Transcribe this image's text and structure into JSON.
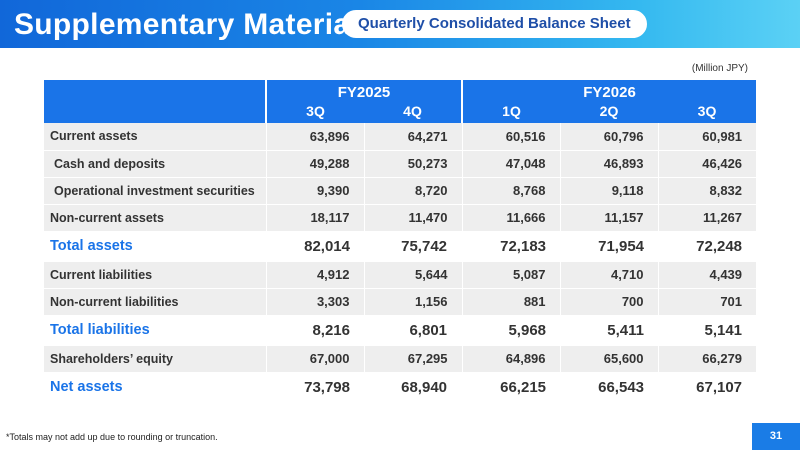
{
  "header": {
    "title": "Supplementary Material",
    "subtitle": "Quarterly Consolidated Balance Sheet"
  },
  "unit_note": "(Million JPY)",
  "table": {
    "groups": [
      "FY2025",
      "FY2026"
    ],
    "columns": [
      "3Q",
      "4Q",
      "1Q",
      "2Q",
      "3Q"
    ],
    "rows": [
      {
        "label": "Current assets",
        "values": [
          "63,896",
          "64,271",
          "60,516",
          "60,796",
          "60,981"
        ],
        "type": "detail"
      },
      {
        "label": "Cash and deposits",
        "values": [
          "49,288",
          "50,273",
          "47,048",
          "46,893",
          "46,426"
        ],
        "type": "detail-indent"
      },
      {
        "label": "Operational investment securities",
        "values": [
          "9,390",
          "8,720",
          "8,768",
          "9,118",
          "8,832"
        ],
        "type": "detail-indent"
      },
      {
        "label": "Non-current assets",
        "values": [
          "18,117",
          "11,470",
          "11,666",
          "11,157",
          "11,267"
        ],
        "type": "detail"
      },
      {
        "label": "Total assets",
        "values": [
          "82,014",
          "75,742",
          "72,183",
          "71,954",
          "72,248"
        ],
        "type": "total"
      },
      {
        "label": "Current liabilities",
        "values": [
          "4,912",
          "5,644",
          "5,087",
          "4,710",
          "4,439"
        ],
        "type": "detail"
      },
      {
        "label": "Non-current liabilities",
        "values": [
          "3,303",
          "1,156",
          "881",
          "700",
          "701"
        ],
        "type": "detail"
      },
      {
        "label": "Total liabilities",
        "values": [
          "8,216",
          "6,801",
          "5,968",
          "5,411",
          "5,141"
        ],
        "type": "total"
      },
      {
        "label": "Shareholders’ equity",
        "values": [
          "67,000",
          "67,295",
          "64,896",
          "65,600",
          "66,279"
        ],
        "type": "detail"
      },
      {
        "label": "Net assets",
        "values": [
          "73,798",
          "68,940",
          "66,215",
          "66,543",
          "67,107"
        ],
        "type": "total"
      }
    ]
  },
  "footnote": "*Totals may not add up due to rounding or truncation.",
  "page_number": "31",
  "colors": {
    "accent": "#1a74e8",
    "header_gradient_start": "#1167d9",
    "header_gradient_end": "#5bd1f5",
    "row_background": "#eeeeee"
  }
}
